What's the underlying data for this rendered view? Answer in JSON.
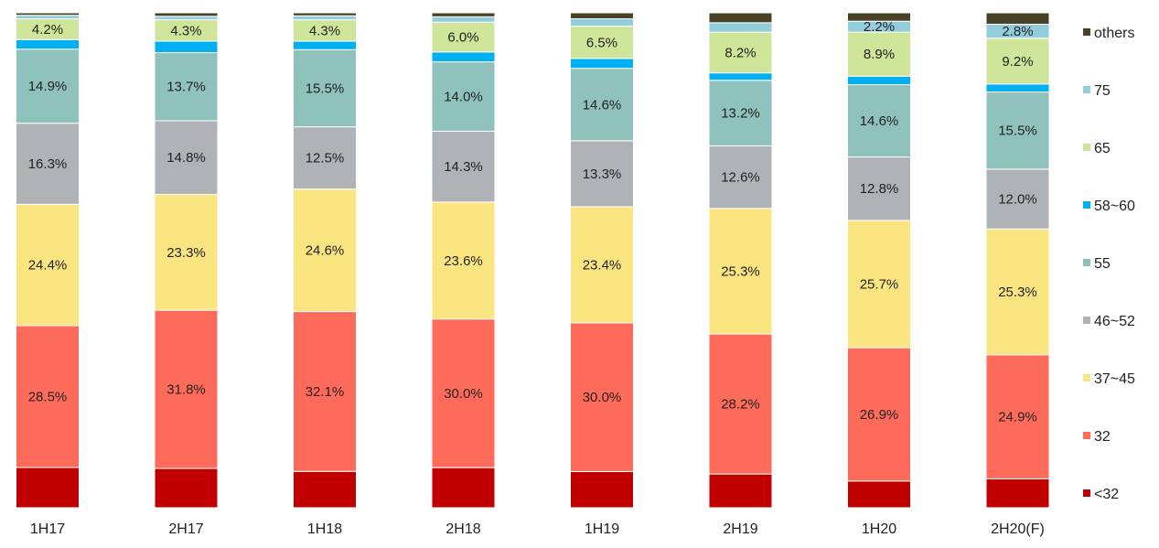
{
  "chart_data": {
    "type": "bar",
    "stacked": true,
    "normalized_percent": true,
    "categories": [
      "1H17",
      "2H17",
      "1H18",
      "2H18",
      "1H19",
      "2H19",
      "1H20",
      "2H20(F)"
    ],
    "series": [
      {
        "name": "<32",
        "color": "#c00000",
        "values": [
          8.1,
          7.9,
          7.3,
          8.1,
          7.3,
          6.8,
          5.4,
          5.8
        ],
        "labels": [
          "",
          "",
          "",
          "",
          "",
          "",
          "",
          ""
        ]
      },
      {
        "name": "32",
        "color": "#ff6b5b",
        "values": [
          28.5,
          31.8,
          32.1,
          30.0,
          30.0,
          28.2,
          26.9,
          24.9
        ],
        "labels": [
          "28.5%",
          "31.8%",
          "32.1%",
          "30.0%",
          "30.0%",
          "28.2%",
          "26.9%",
          "24.9%"
        ]
      },
      {
        "name": "37~45",
        "color": "#fbe580",
        "values": [
          24.4,
          23.3,
          24.6,
          23.6,
          23.4,
          25.3,
          25.7,
          25.3
        ],
        "labels": [
          "24.4%",
          "23.3%",
          "24.6%",
          "23.6%",
          "23.4%",
          "25.3%",
          "25.7%",
          "25.3%"
        ]
      },
      {
        "name": "46~52",
        "color": "#b0b3b6",
        "values": [
          16.3,
          14.8,
          12.5,
          14.3,
          13.3,
          12.6,
          12.8,
          12.0
        ],
        "labels": [
          "16.3%",
          "14.8%",
          "12.5%",
          "14.3%",
          "13.3%",
          "12.6%",
          "12.8%",
          "12.0%"
        ]
      },
      {
        "name": "55",
        "color": "#8fc1bd",
        "values": [
          14.9,
          13.7,
          15.5,
          14.0,
          14.6,
          13.2,
          14.6,
          15.5
        ],
        "labels": [
          "14.9%",
          "13.7%",
          "15.5%",
          "14.0%",
          "14.6%",
          "13.2%",
          "14.6%",
          "15.5%"
        ]
      },
      {
        "name": "58~60",
        "color": "#00b0f0",
        "values": [
          1.9,
          2.3,
          1.7,
          2.0,
          2.0,
          1.5,
          1.7,
          1.6
        ],
        "labels": [
          "",
          "",
          "",
          "",
          "",
          "",
          "",
          ""
        ]
      },
      {
        "name": "65",
        "color": "#cfe59a",
        "values": [
          4.2,
          4.3,
          4.3,
          6.0,
          6.5,
          8.2,
          8.9,
          9.2
        ],
        "labels": [
          "4.2%",
          "4.3%",
          "4.3%",
          "6.0%",
          "6.5%",
          "8.2%",
          "8.9%",
          "9.2%"
        ]
      },
      {
        "name": "75",
        "color": "#92cddc",
        "values": [
          0.7,
          0.7,
          0.8,
          1.1,
          1.5,
          1.9,
          2.2,
          2.8
        ],
        "labels": [
          "",
          "",
          "",
          "",
          "",
          "",
          "2.2%",
          "2.8%"
        ]
      },
      {
        "name": "others",
        "color": "#4a4226",
        "values": [
          0.5,
          0.7,
          0.6,
          0.8,
          1.2,
          2.0,
          1.7,
          2.3
        ],
        "labels": [
          "",
          "",
          "",
          "",
          "",
          "",
          "",
          ""
        ]
      }
    ],
    "ylim": [
      0,
      100
    ],
    "grid": false,
    "legend_position": "right",
    "legend_order": [
      "others",
      "75",
      "65",
      "58~60",
      "55",
      "46~52",
      "37~45",
      "32",
      "<32"
    ]
  }
}
